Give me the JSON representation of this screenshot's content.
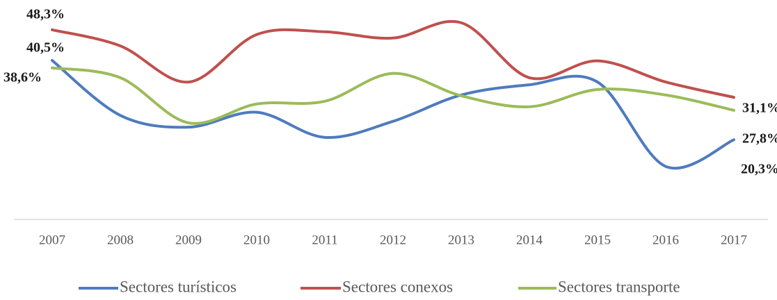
{
  "chart_data": {
    "type": "line",
    "categories": [
      "2007",
      "2008",
      "2009",
      "2010",
      "2011",
      "2012",
      "2013",
      "2014",
      "2015",
      "2016",
      "2017"
    ],
    "ylim": [
      0,
      52
    ],
    "series": [
      {
        "name": "Sectores turísticos",
        "color": "#4f7bbd",
        "values": [
          40.5,
          26.5,
          23.5,
          27.3,
          20.9,
          25.0,
          31.7,
          34.3,
          35.0,
          13.5,
          20.3
        ],
        "value_labels": [
          "40,5%",
          null,
          null,
          null,
          null,
          null,
          null,
          null,
          null,
          null,
          "20,3%"
        ]
      },
      {
        "name": "Sectores conexos",
        "color": "#c0504d",
        "values": [
          48.3,
          44.2,
          35.0,
          47.1,
          47.8,
          46.2,
          50.1,
          36.1,
          40.4,
          35.0,
          31.1
        ],
        "value_labels": [
          "48,3%",
          null,
          null,
          null,
          null,
          null,
          null,
          null,
          null,
          null,
          "31,1%"
        ]
      },
      {
        "name": "Sectores transporte",
        "color": "#9bbb59",
        "values": [
          38.6,
          36.1,
          24.6,
          29.4,
          30.1,
          37.2,
          31.5,
          28.7,
          33.1,
          31.7,
          27.8
        ],
        "value_labels": [
          "38,6%",
          null,
          null,
          null,
          null,
          null,
          null,
          null,
          null,
          null,
          "27,8%"
        ]
      }
    ]
  }
}
